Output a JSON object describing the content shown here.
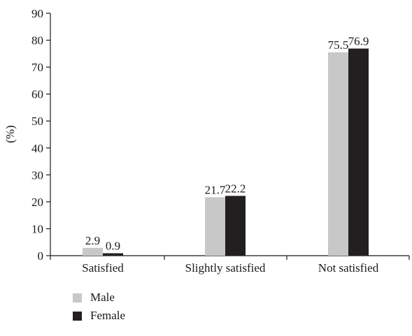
{
  "chart_data": {
    "type": "bar",
    "categories": [
      "Satisfied",
      "Slightly satisfied",
      "Not satisfied"
    ],
    "series": [
      {
        "name": "Male",
        "values": [
          2.9,
          21.7,
          75.5
        ],
        "color": "#c8c8c8"
      },
      {
        "name": "Female",
        "values": [
          0.9,
          22.2,
          76.9
        ],
        "color": "#231f20"
      }
    ],
    "data_labels": [
      [
        "2.9",
        "21.7",
        "75.5"
      ],
      [
        "0.9",
        "22.2",
        "76.9"
      ]
    ],
    "title": "",
    "xlabel": "",
    "ylabel": "(%)",
    "ylim": [
      0,
      90
    ],
    "yticks": [
      0,
      10,
      20,
      30,
      40,
      50,
      60,
      70,
      80,
      90
    ],
    "grid": false,
    "legend_position": "bottom-left"
  }
}
